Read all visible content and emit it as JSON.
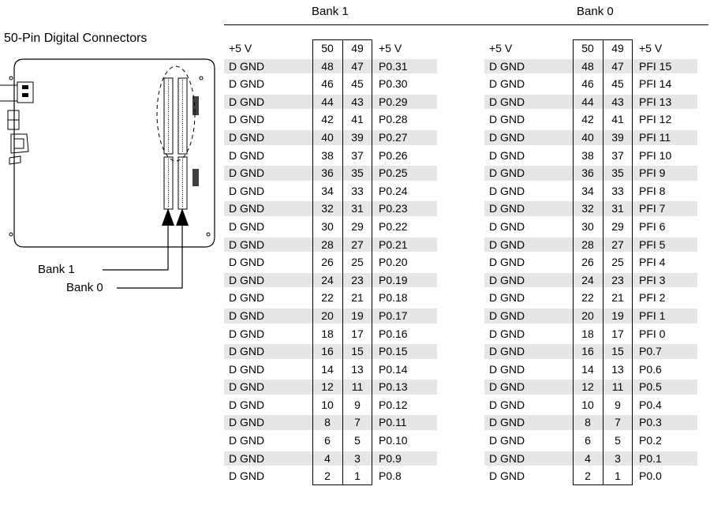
{
  "headers": {
    "bank1": "Bank 1",
    "bank0": "Bank 0"
  },
  "diagram": {
    "title": "50-Pin Digital Connectors",
    "label_bank1": "Bank 1",
    "label_bank0": "Bank 0"
  },
  "bank1_rows": [
    {
      "left": "+5 V",
      "p1": "50",
      "p2": "49",
      "right": "+5 V"
    },
    {
      "left": "D GND",
      "p1": "48",
      "p2": "47",
      "right": "P0.31"
    },
    {
      "left": "D GND",
      "p1": "46",
      "p2": "45",
      "right": "P0.30"
    },
    {
      "left": "D GND",
      "p1": "44",
      "p2": "43",
      "right": "P0.29"
    },
    {
      "left": "D GND",
      "p1": "42",
      "p2": "41",
      "right": "P0.28"
    },
    {
      "left": "D GND",
      "p1": "40",
      "p2": "39",
      "right": "P0.27"
    },
    {
      "left": "D GND",
      "p1": "38",
      "p2": "37",
      "right": "P0.26"
    },
    {
      "left": "D GND",
      "p1": "36",
      "p2": "35",
      "right": "P0.25"
    },
    {
      "left": "D GND",
      "p1": "34",
      "p2": "33",
      "right": "P0.24"
    },
    {
      "left": "D GND",
      "p1": "32",
      "p2": "31",
      "right": "P0.23"
    },
    {
      "left": "D GND",
      "p1": "30",
      "p2": "29",
      "right": "P0.22"
    },
    {
      "left": "D GND",
      "p1": "28",
      "p2": "27",
      "right": "P0.21"
    },
    {
      "left": "D GND",
      "p1": "26",
      "p2": "25",
      "right": "P0.20"
    },
    {
      "left": "D GND",
      "p1": "24",
      "p2": "23",
      "right": "P0.19"
    },
    {
      "left": "D GND",
      "p1": "22",
      "p2": "21",
      "right": "P0.18"
    },
    {
      "left": "D GND",
      "p1": "20",
      "p2": "19",
      "right": "P0.17"
    },
    {
      "left": "D GND",
      "p1": "18",
      "p2": "17",
      "right": "P0.16"
    },
    {
      "left": "D GND",
      "p1": "16",
      "p2": "15",
      "right": "P0.15"
    },
    {
      "left": "D GND",
      "p1": "14",
      "p2": "13",
      "right": "P0.14"
    },
    {
      "left": "D GND",
      "p1": "12",
      "p2": "11",
      "right": "P0.13"
    },
    {
      "left": "D GND",
      "p1": "10",
      "p2": "9",
      "right": "P0.12"
    },
    {
      "left": "D GND",
      "p1": "8",
      "p2": "7",
      "right": "P0.11"
    },
    {
      "left": "D GND",
      "p1": "6",
      "p2": "5",
      "right": "P0.10"
    },
    {
      "left": "D GND",
      "p1": "4",
      "p2": "3",
      "right": "P0.9"
    },
    {
      "left": "D GND",
      "p1": "2",
      "p2": "1",
      "right": "P0.8"
    }
  ],
  "bank0_rows": [
    {
      "left": "+5 V",
      "p1": "50",
      "p2": "49",
      "right": "+5 V"
    },
    {
      "left": "D GND",
      "p1": "48",
      "p2": "47",
      "right": "PFI 15"
    },
    {
      "left": "D GND",
      "p1": "46",
      "p2": "45",
      "right": "PFI 14"
    },
    {
      "left": "D GND",
      "p1": "44",
      "p2": "43",
      "right": "PFI 13"
    },
    {
      "left": "D GND",
      "p1": "42",
      "p2": "41",
      "right": "PFI 12"
    },
    {
      "left": "D GND",
      "p1": "40",
      "p2": "39",
      "right": "PFI 11"
    },
    {
      "left": "D GND",
      "p1": "38",
      "p2": "37",
      "right": "PFI 10"
    },
    {
      "left": "D GND",
      "p1": "36",
      "p2": "35",
      "right": "PFI 9"
    },
    {
      "left": "D GND",
      "p1": "34",
      "p2": "33",
      "right": "PFI 8"
    },
    {
      "left": "D GND",
      "p1": "32",
      "p2": "31",
      "right": "PFI 7"
    },
    {
      "left": "D GND",
      "p1": "30",
      "p2": "29",
      "right": "PFI 6"
    },
    {
      "left": "D GND",
      "p1": "28",
      "p2": "27",
      "right": "PFI 5"
    },
    {
      "left": "D GND",
      "p1": "26",
      "p2": "25",
      "right": "PFI 4"
    },
    {
      "left": "D GND",
      "p1": "24",
      "p2": "23",
      "right": "PFI 3"
    },
    {
      "left": "D GND",
      "p1": "22",
      "p2": "21",
      "right": "PFI 2"
    },
    {
      "left": "D GND",
      "p1": "20",
      "p2": "19",
      "right": "PFI 1"
    },
    {
      "left": "D GND",
      "p1": "18",
      "p2": "17",
      "right": "PFI 0"
    },
    {
      "left": "D GND",
      "p1": "16",
      "p2": "15",
      "right": "P0.7"
    },
    {
      "left": "D GND",
      "p1": "14",
      "p2": "13",
      "right": "P0.6"
    },
    {
      "left": "D GND",
      "p1": "12",
      "p2": "11",
      "right": "P0.5"
    },
    {
      "left": "D GND",
      "p1": "10",
      "p2": "9",
      "right": "P0.4"
    },
    {
      "left": "D GND",
      "p1": "8",
      "p2": "7",
      "right": "P0.3"
    },
    {
      "left": "D GND",
      "p1": "6",
      "p2": "5",
      "right": "P0.2"
    },
    {
      "left": "D GND",
      "p1": "4",
      "p2": "3",
      "right": "P0.1"
    },
    {
      "left": "D GND",
      "p1": "2",
      "p2": "1",
      "right": "P0.0"
    }
  ],
  "colors": {
    "row_shade": "#e6e6e6",
    "line": "#000000"
  }
}
